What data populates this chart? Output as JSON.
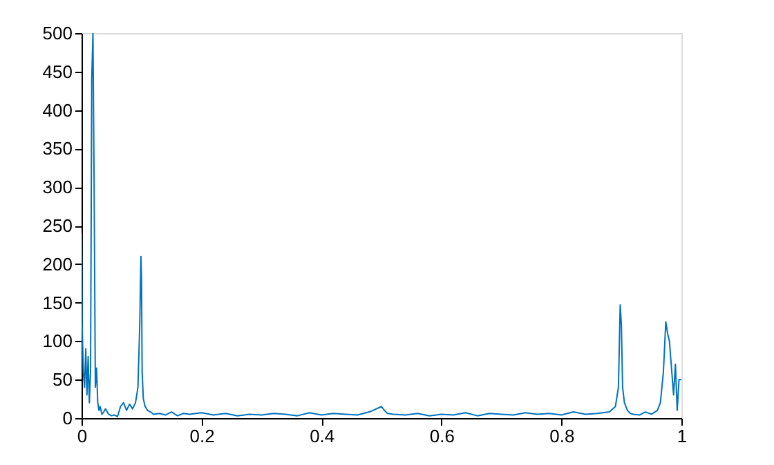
{
  "chart_data": {
    "type": "line",
    "xlim": [
      0,
      1
    ],
    "ylim": [
      0,
      500
    ],
    "xticks": [
      0,
      0.2,
      0.4,
      0.6,
      0.8,
      1
    ],
    "yticks": [
      0,
      50,
      100,
      150,
      200,
      250,
      300,
      350,
      400,
      450,
      500
    ],
    "grid": false,
    "series": [
      {
        "color": "#0072bd",
        "x": [
          0,
          0.001,
          0.003,
          0.005,
          0.007,
          0.009,
          0.011,
          0.013,
          0.015,
          0.017,
          0.019,
          0.021,
          0.023,
          0.025,
          0.027,
          0.029,
          0.031,
          0.034,
          0.037,
          0.04,
          0.045,
          0.05,
          0.055,
          0.06,
          0.065,
          0.07,
          0.075,
          0.08,
          0.085,
          0.09,
          0.094,
          0.097,
          0.099,
          0.1,
          0.101,
          0.103,
          0.106,
          0.11,
          0.115,
          0.12,
          0.13,
          0.14,
          0.15,
          0.16,
          0.17,
          0.18,
          0.2,
          0.22,
          0.24,
          0.26,
          0.28,
          0.3,
          0.32,
          0.34,
          0.36,
          0.38,
          0.4,
          0.42,
          0.44,
          0.46,
          0.48,
          0.5,
          0.505,
          0.51,
          0.52,
          0.54,
          0.56,
          0.58,
          0.6,
          0.62,
          0.64,
          0.66,
          0.68,
          0.7,
          0.72,
          0.74,
          0.76,
          0.78,
          0.8,
          0.82,
          0.84,
          0.86,
          0.88,
          0.89,
          0.895,
          0.898,
          0.9,
          0.902,
          0.905,
          0.91,
          0.915,
          0.92,
          0.93,
          0.94,
          0.95,
          0.96,
          0.965,
          0.97,
          0.974,
          0.977,
          0.98,
          0.982,
          0.984,
          0.987,
          0.99,
          0.993,
          0.996,
          1
        ],
        "values": [
          240,
          120,
          60,
          40,
          90,
          30,
          80,
          20,
          60,
          440,
          500,
          300,
          40,
          65,
          20,
          10,
          15,
          5,
          8,
          12,
          5,
          3,
          4,
          2,
          15,
          20,
          10,
          18,
          12,
          20,
          40,
          120,
          210,
          180,
          60,
          25,
          15,
          10,
          8,
          5,
          6,
          4,
          8,
          3,
          6,
          5,
          7,
          4,
          6,
          3,
          5,
          4,
          6,
          5,
          3,
          7,
          4,
          6,
          5,
          4,
          8,
          15,
          10,
          6,
          5,
          4,
          6,
          3,
          5,
          4,
          7,
          3,
          6,
          5,
          4,
          7,
          5,
          6,
          4,
          8,
          5,
          6,
          8,
          15,
          40,
          147,
          120,
          40,
          20,
          10,
          6,
          5,
          4,
          8,
          5,
          10,
          20,
          60,
          125,
          110,
          100,
          80,
          60,
          30,
          70,
          10,
          50,
          50
        ]
      }
    ]
  }
}
